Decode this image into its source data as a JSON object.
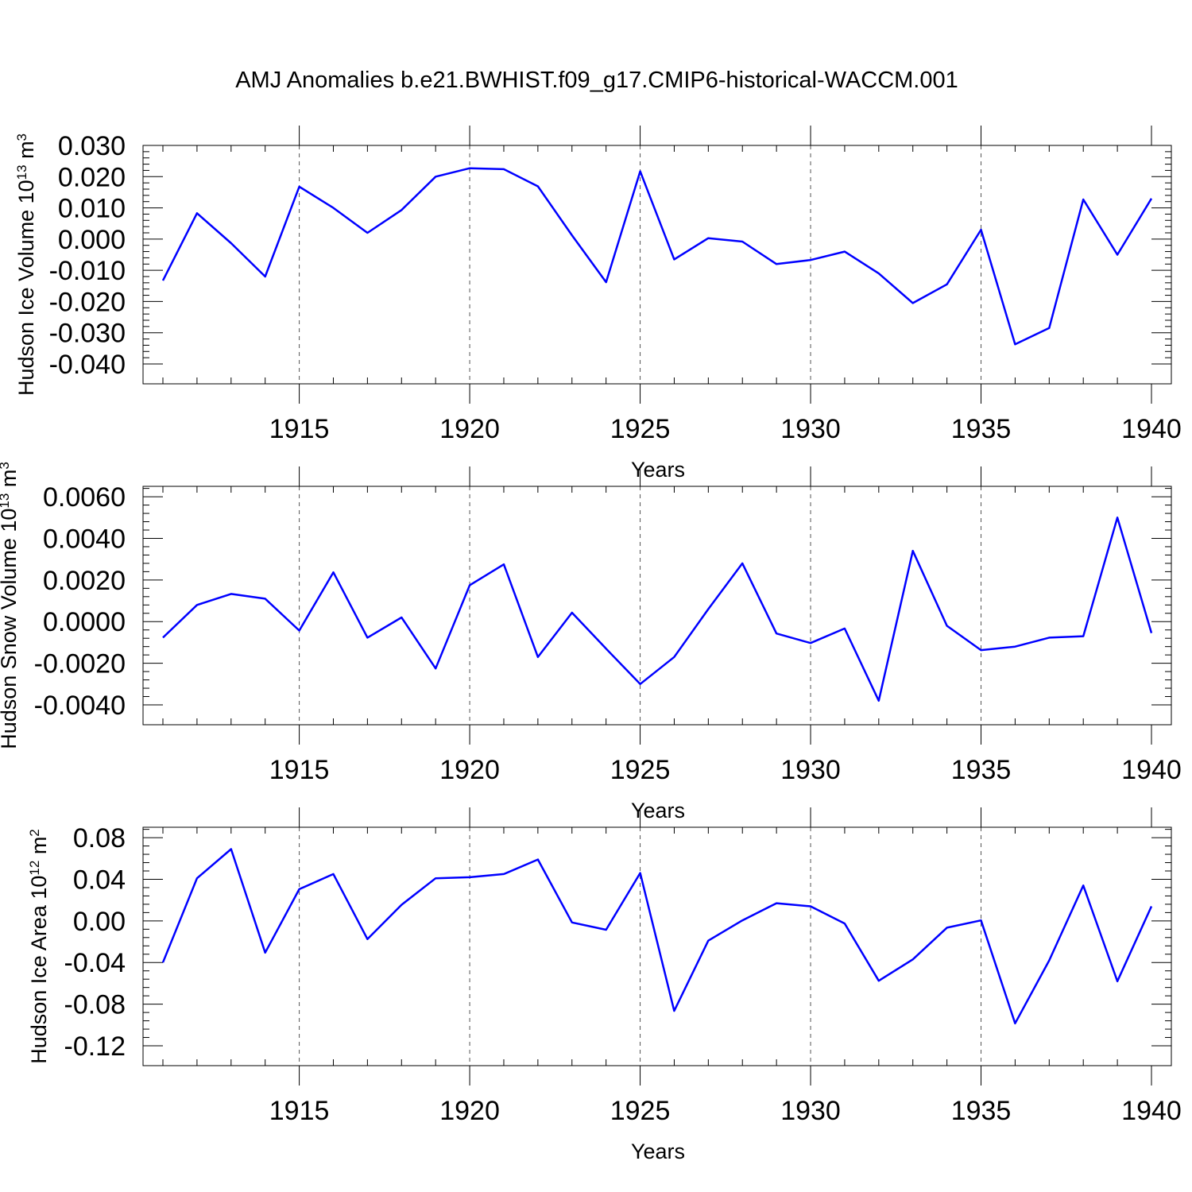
{
  "title": "AMJ Anomalies b.e21.BWHIST.f09_g17.CMIP6-historical-WACCM.001",
  "chart_data": [
    {
      "type": "line",
      "title": "",
      "xlabel": "Years",
      "ylabel": {
        "main": "Hudson Ice Volume 10",
        "sup1": "13",
        "mid": " m",
        "sup2": "3"
      },
      "xlim": [
        1911,
        1940
      ],
      "ylim": [
        -0.04,
        0.03
      ],
      "grid": "dashed vertical at major x ticks",
      "x_ticks": [
        1915,
        1920,
        1925,
        1930,
        1935,
        1940
      ],
      "x_tick_labels": [
        "1915",
        "1920",
        "1925",
        "1930",
        "1935",
        "1940"
      ],
      "y_ticks": [
        -0.04,
        -0.03,
        -0.02,
        -0.01,
        0.0,
        0.01,
        0.02,
        0.03
      ],
      "y_tick_labels": [
        "-0.040",
        "-0.030",
        "-0.020",
        "-0.010",
        "0.000",
        "0.010",
        "0.020",
        "0.030"
      ],
      "y_minor_step": 0.002,
      "x": [
        1911,
        1912,
        1913,
        1914,
        1915,
        1916,
        1917,
        1918,
        1919,
        1920,
        1921,
        1922,
        1923,
        1924,
        1925,
        1926,
        1927,
        1928,
        1929,
        1930,
        1931,
        1932,
        1933,
        1934,
        1935,
        1936,
        1937,
        1938,
        1939,
        1940
      ],
      "series": [
        {
          "values": [
            -0.0133,
            0.0083,
            -0.0013,
            -0.012,
            0.0168,
            0.01,
            0.002,
            0.0093,
            0.02,
            0.0227,
            0.0224,
            0.0169,
            0.0012,
            -0.0138,
            0.0217,
            -0.0065,
            0.0003,
            -0.0008,
            -0.008,
            -0.0067,
            -0.004,
            -0.011,
            -0.0205,
            -0.0145,
            0.003,
            -0.0337,
            -0.0285,
            0.0127,
            -0.005,
            0.013
          ]
        }
      ],
      "color": "#0000ff"
    },
    {
      "type": "line",
      "title": "",
      "xlabel": "Years",
      "ylabel": {
        "main": "Hudson Snow Volume 10",
        "sup1": "13",
        "mid": " m",
        "sup2": "3"
      },
      "xlim": [
        1911,
        1940
      ],
      "ylim": [
        -0.004,
        0.0065
      ],
      "grid": "dashed vertical at major x ticks",
      "x_ticks": [
        1915,
        1920,
        1925,
        1930,
        1935,
        1940
      ],
      "x_tick_labels": [
        "1915",
        "1920",
        "1925",
        "1930",
        "1935",
        "1940"
      ],
      "y_ticks": [
        -0.004,
        -0.002,
        0.0,
        0.002,
        0.004,
        0.006
      ],
      "y_tick_labels": [
        "-0.0040",
        "-0.0020",
        "0.0000",
        "0.0020",
        "0.0040",
        "0.0060"
      ],
      "y_minor_step": 0.0004,
      "x": [
        1911,
        1912,
        1913,
        1914,
        1915,
        1916,
        1917,
        1918,
        1919,
        1920,
        1921,
        1922,
        1923,
        1924,
        1925,
        1926,
        1927,
        1928,
        1929,
        1930,
        1931,
        1932,
        1933,
        1934,
        1935,
        1936,
        1937,
        1938,
        1939,
        1940
      ],
      "series": [
        {
          "values": [
            -0.00077,
            0.0008,
            0.00133,
            0.0011,
            -0.00043,
            0.00237,
            -0.00077,
            0.0002,
            -0.00225,
            0.00175,
            0.00275,
            -0.0017,
            0.00043,
            -0.0013,
            -0.003,
            -0.0017,
            0.0006,
            0.0028,
            -0.00057,
            -0.00103,
            -0.00033,
            -0.0038,
            0.0034,
            -0.0002,
            -0.00137,
            -0.0012,
            -0.00077,
            -0.0007,
            0.005,
            -0.00055
          ]
        }
      ],
      "color": "#0000ff"
    },
    {
      "type": "line",
      "title": "",
      "xlabel": "Years",
      "ylabel": {
        "main": "Hudson Ice Area 10",
        "sup1": "12",
        "mid": " m",
        "sup2": "2"
      },
      "xlim": [
        1911,
        1940
      ],
      "ylim": [
        -0.12,
        0.09
      ],
      "grid": "dashed vertical at major x ticks",
      "x_ticks": [
        1915,
        1920,
        1925,
        1930,
        1935,
        1940
      ],
      "x_tick_labels": [
        "1915",
        "1920",
        "1925",
        "1930",
        "1935",
        "1940"
      ],
      "y_ticks": [
        -0.12,
        -0.08,
        -0.04,
        0.0,
        0.04,
        0.08
      ],
      "y_tick_labels": [
        "-0.12",
        "-0.08",
        "-0.04",
        "0.00",
        "0.04",
        "0.08"
      ],
      "y_minor_step": 0.008,
      "x": [
        1911,
        1912,
        1913,
        1914,
        1915,
        1916,
        1917,
        1918,
        1919,
        1920,
        1921,
        1922,
        1923,
        1924,
        1925,
        1926,
        1927,
        1928,
        1929,
        1930,
        1931,
        1932,
        1933,
        1934,
        1935,
        1936,
        1937,
        1938,
        1939,
        1940
      ],
      "series": [
        {
          "values": [
            -0.04,
            0.041,
            0.069,
            -0.0305,
            0.0305,
            0.045,
            -0.0175,
            0.0155,
            0.041,
            0.042,
            0.045,
            0.059,
            -0.0015,
            -0.0085,
            0.046,
            -0.0865,
            -0.019,
            0.0005,
            0.017,
            0.014,
            -0.0025,
            -0.0575,
            -0.037,
            -0.0065,
            0.0005,
            -0.0985,
            -0.038,
            0.034,
            -0.058,
            0.014
          ]
        }
      ],
      "color": "#0000ff"
    }
  ]
}
